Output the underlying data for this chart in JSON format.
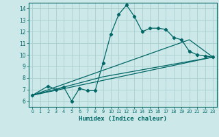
{
  "xlabel": "Humidex (Indice chaleur)",
  "bg_color": "#cce8e8",
  "grid_color": "#aacfcf",
  "line_color": "#006666",
  "xlim": [
    -0.5,
    23.5
  ],
  "ylim": [
    5.5,
    14.5
  ],
  "xticks": [
    0,
    1,
    2,
    3,
    4,
    5,
    6,
    7,
    8,
    9,
    10,
    11,
    12,
    13,
    14,
    15,
    16,
    17,
    18,
    19,
    20,
    21,
    22,
    23
  ],
  "yticks": [
    6,
    7,
    8,
    9,
    10,
    11,
    12,
    13,
    14
  ],
  "line1_x": [
    0,
    2,
    3,
    4,
    5,
    6,
    7,
    8,
    9,
    10,
    11,
    12,
    13,
    14,
    15,
    16,
    17,
    18,
    19,
    20,
    21,
    22,
    23
  ],
  "line1_y": [
    6.5,
    7.3,
    7.0,
    7.2,
    6.0,
    7.1,
    6.9,
    6.9,
    9.3,
    11.8,
    13.5,
    14.3,
    13.3,
    12.0,
    12.3,
    12.3,
    12.2,
    11.5,
    11.3,
    10.3,
    10.0,
    9.9,
    9.8
  ],
  "line2_x": [
    0,
    23
  ],
  "line2_y": [
    6.5,
    9.8
  ],
  "line3_x": [
    0,
    9,
    23
  ],
  "line3_y": [
    6.5,
    8.1,
    9.8
  ],
  "line4_x": [
    0,
    20,
    23
  ],
  "line4_y": [
    6.5,
    11.3,
    9.8
  ]
}
